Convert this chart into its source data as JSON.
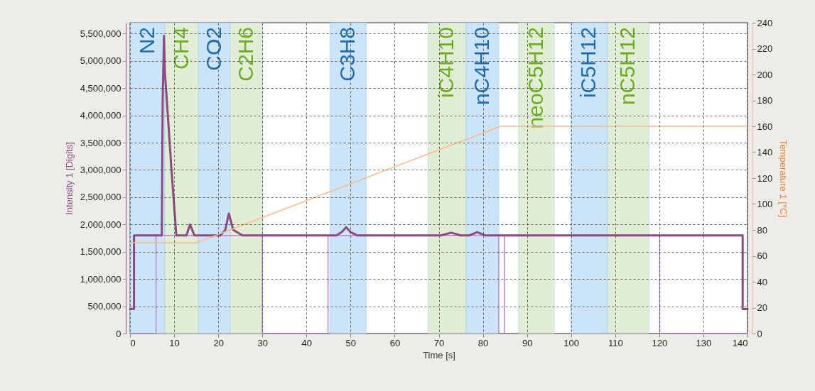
{
  "chart_data": {
    "type": "line",
    "xlabel": "Time [s]",
    "ylabel": "Intensity 1 [Digits]",
    "y2label": "Temperature 1 [°C]",
    "xlim": [
      0,
      140
    ],
    "xticks": [
      0,
      10,
      20,
      30,
      40,
      50,
      60,
      70,
      80,
      90,
      100,
      110,
      120,
      130,
      140
    ],
    "ylim": [
      0,
      5700000
    ],
    "yticks": [
      0,
      {
        "value": 500000,
        "label": "500,000"
      },
      {
        "value": 1000000,
        "label": "1,000,000"
      },
      {
        "value": 1500000,
        "label": "1,500,000"
      },
      {
        "value": 2000000,
        "label": "2,000,000"
      },
      {
        "value": 2500000,
        "label": "2,500,000"
      },
      {
        "value": 3000000,
        "label": "3,000,000"
      },
      {
        "value": 3500000,
        "label": "3,500,000"
      },
      {
        "value": 4000000,
        "label": "4,000,000"
      },
      {
        "value": 4500000,
        "label": "4,500,000"
      },
      {
        "value": 5000000,
        "label": "5,000,000"
      },
      {
        "value": 5500000,
        "label": "5,500,000"
      }
    ],
    "y2lim": [
      0,
      240
    ],
    "y2ticks": [
      0,
      20,
      40,
      60,
      80,
      100,
      120,
      140,
      160,
      180,
      200,
      220,
      240
    ],
    "grid": true,
    "bands": [
      {
        "axis": "x",
        "from": 0,
        "to": 7.9,
        "label": "N2",
        "color": "#cce4f7"
      },
      {
        "axis": "x",
        "from": 7.9,
        "to": 15.5,
        "label": "CH4",
        "color": "#e2edd5"
      },
      {
        "axis": "x",
        "from": 15.5,
        "to": 22.7,
        "label": "CO2",
        "color": "#cce4f7"
      },
      {
        "axis": "x",
        "from": 22.7,
        "to": 30.1,
        "label": "C2H6",
        "color": "#e2edd5"
      },
      {
        "axis": "x",
        "from": 45.3,
        "to": 53.6,
        "label": "C3H8",
        "color": "#cce4f7"
      },
      {
        "axis": "x",
        "from": 67.6,
        "to": 76.2,
        "label": "iC4H10",
        "color": "#e2edd5"
      },
      {
        "axis": "x",
        "from": 76.2,
        "to": 83.6,
        "label": "nC4H10",
        "color": "#cce4f7"
      },
      {
        "axis": "x",
        "from": 88.1,
        "to": 96.2,
        "label": "neoC5H12",
        "color": "#e2edd5"
      },
      {
        "axis": "x",
        "from": 99.9,
        "to": 108.3,
        "label": "iC5H12",
        "color": "#cce4f7"
      },
      {
        "axis": "x",
        "from": 108.3,
        "to": 117.7,
        "label": "nC5H12",
        "color": "#e2edd5"
      }
    ],
    "series": [
      {
        "color": "#b982d6",
        "x": [
          0,
          5.9,
          5.9,
          30,
          30,
          44.9,
          44.9,
          83.6,
          83.6,
          84.9,
          84.9,
          120.1,
          120.1,
          140
        ],
        "values": [
          0,
          0,
          1800000,
          1800000,
          0,
          0,
          1800000,
          1800000,
          0,
          0,
          1800000,
          1800000,
          0,
          0
        ]
      },
      {
        "color": "#f9b98c",
        "axis": "y2",
        "x": [
          0,
          15,
          84,
          140
        ],
        "values": [
          70,
          70,
          160,
          160
        ]
      },
      {
        "color": "#8c4a80",
        "x": [
          0,
          0.9,
          0.9,
          7.2,
          7.4,
          7.7,
          7.9,
          8.2,
          9.4,
          10.5,
          12.8,
          13.6,
          14.6,
          20.5,
          21.6,
          22.4,
          23.4,
          25.5,
          46.8,
          48,
          49,
          50,
          51.5,
          70.5,
          72.8,
          75,
          77,
          78.7,
          80.5,
          138.9,
          138.9,
          140
        ],
        "values": [
          450000,
          450000,
          1800000,
          1800000,
          4270000,
          5460000,
          4800000,
          4450000,
          3000000,
          1800000,
          1800000,
          2000000,
          1800000,
          1800000,
          1900000,
          2200000,
          1900000,
          1800000,
          1800000,
          1860000,
          1950000,
          1860000,
          1800000,
          1800000,
          1850000,
          1800000,
          1800000,
          1860000,
          1800000,
          1800000,
          450000,
          450000
        ]
      }
    ]
  }
}
